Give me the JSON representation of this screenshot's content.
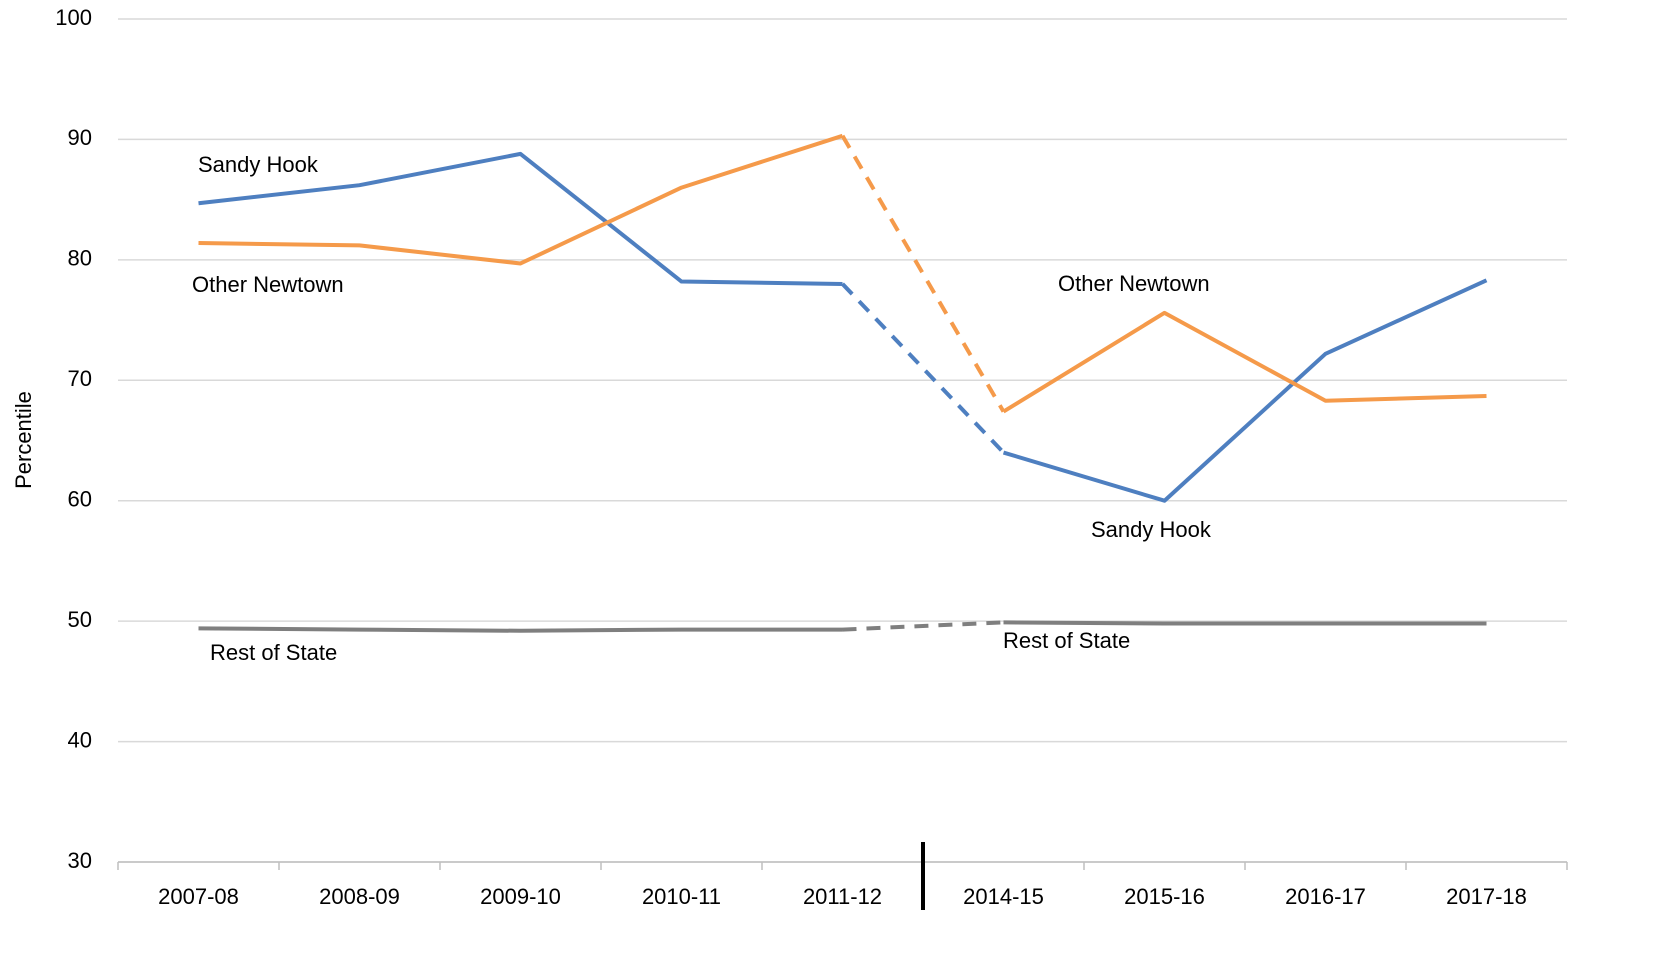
{
  "chart_data": {
    "type": "line",
    "y_label": "Percentile",
    "categories": [
      "2007-08",
      "2008-09",
      "2009-10",
      "2010-11",
      "2011-12",
      "2014-15",
      "2015-16",
      "2016-17",
      "2017-18"
    ],
    "series": [
      {
        "name": "Sandy Hook",
        "color": "#4e7fc0",
        "values": [
          84.7,
          86.2,
          88.8,
          78.2,
          78.0,
          64.0,
          60.0,
          72.2,
          78.3
        ]
      },
      {
        "name": "Other Newtown",
        "color": "#f59a4a",
        "values": [
          81.4,
          81.2,
          79.7,
          86.0,
          90.3,
          67.4,
          75.6,
          68.3,
          68.7
        ]
      },
      {
        "name": "Rest of State",
        "color": "#7f7f7f",
        "values": [
          49.4,
          49.3,
          49.2,
          49.3,
          49.3,
          49.9,
          49.8,
          49.8,
          49.8
        ]
      }
    ],
    "annotations": [
      "Sandy Hook",
      "Other Newtown",
      "Rest of State",
      "Other Newtown",
      "Sandy Hook",
      "Rest of State"
    ],
    "ylim": [
      30,
      100
    ],
    "yticks": [
      30,
      40,
      50,
      60,
      70,
      80,
      90,
      100
    ],
    "grid": true
  }
}
